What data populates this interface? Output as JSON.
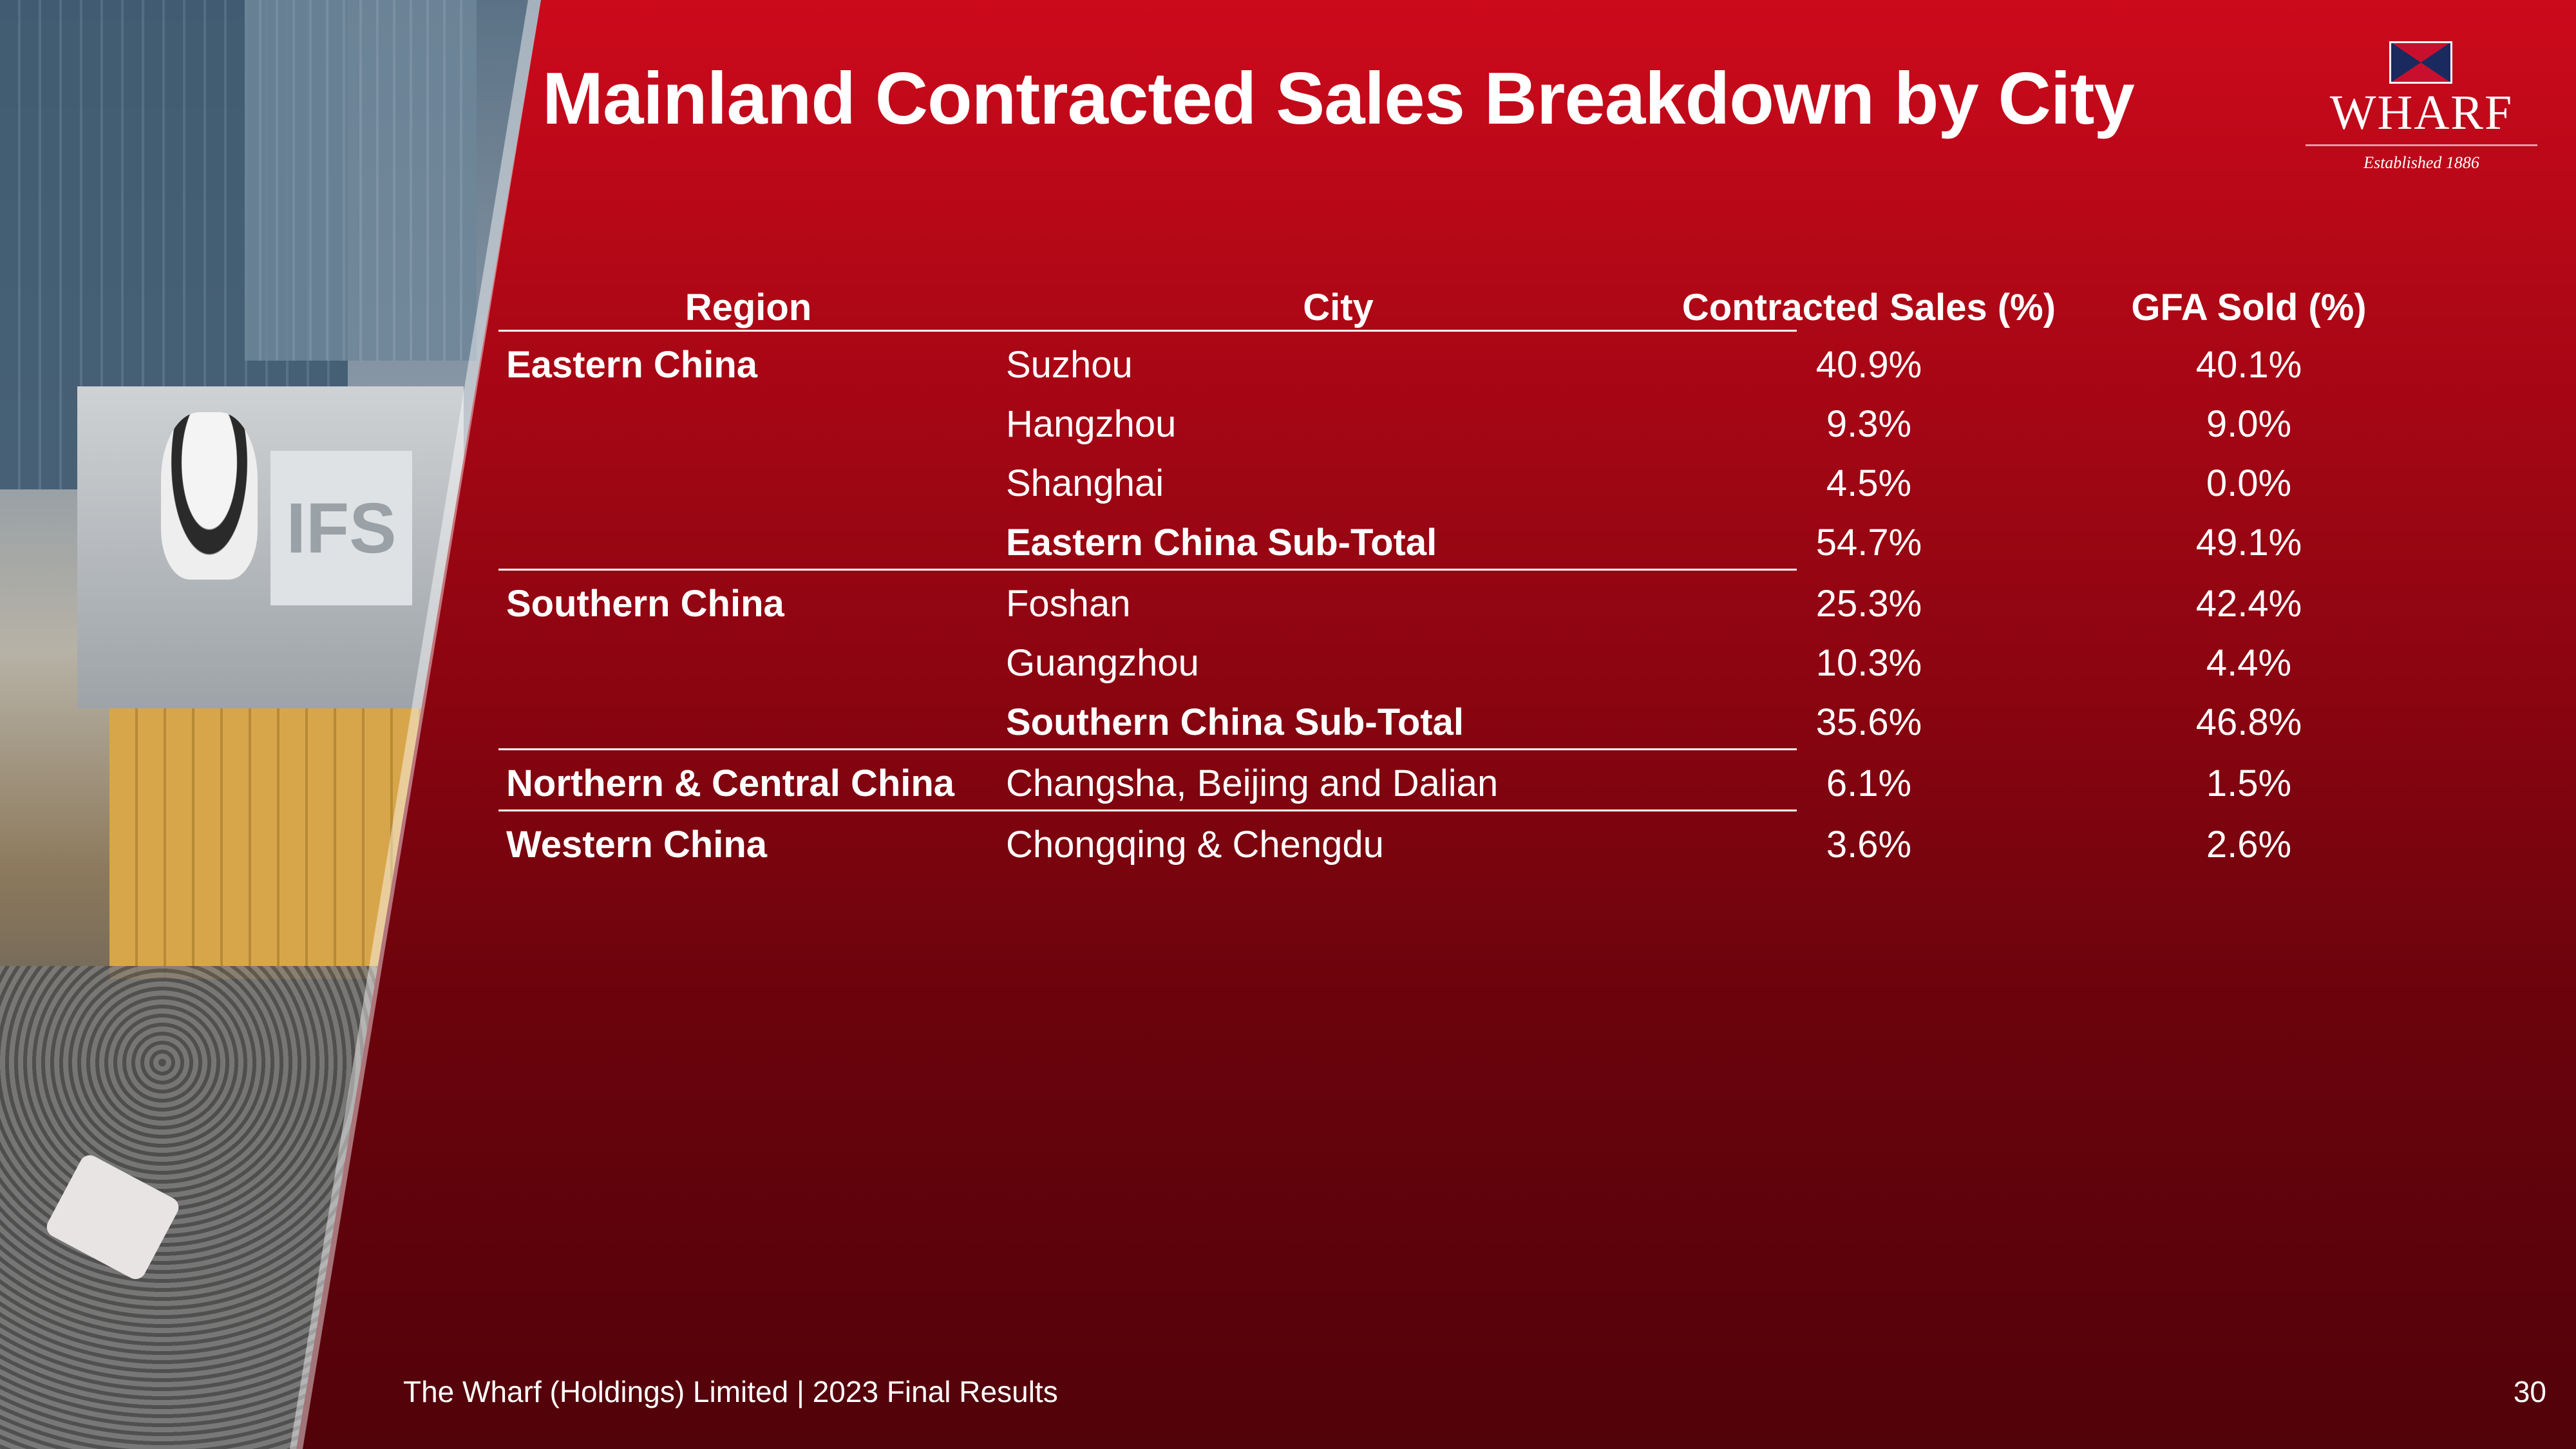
{
  "title": "Mainland Contracted Sales Breakdown by City",
  "logo": {
    "name": "WHARF",
    "established": "Established 1886",
    "colors": {
      "navy": "#1a2a5e",
      "red": "#c8102e"
    }
  },
  "photo": {
    "sign_text": "IFS"
  },
  "table": {
    "headers": {
      "region": "Region",
      "city": "City",
      "contracted_sales": "Contracted Sales (%)",
      "gfa_sold": "GFA Sold (%)"
    },
    "groups": [
      {
        "region": "Eastern China",
        "rows": [
          {
            "city": "Suzhou",
            "contracted_sales": "40.9%",
            "gfa_sold": "40.1%",
            "subtotal": false
          },
          {
            "city": "Hangzhou",
            "contracted_sales": "9.3%",
            "gfa_sold": "9.0%",
            "subtotal": false
          },
          {
            "city": "Shanghai",
            "contracted_sales": "4.5%",
            "gfa_sold": "0.0%",
            "subtotal": false
          },
          {
            "city": "Eastern China Sub-Total",
            "contracted_sales": "54.7%",
            "gfa_sold": "49.1%",
            "subtotal": true
          }
        ]
      },
      {
        "region": "Southern China",
        "rows": [
          {
            "city": "Foshan",
            "contracted_sales": "25.3%",
            "gfa_sold": "42.4%",
            "subtotal": false
          },
          {
            "city": "Guangzhou",
            "contracted_sales": "10.3%",
            "gfa_sold": "4.4%",
            "subtotal": false
          },
          {
            "city": "Southern China Sub-Total",
            "contracted_sales": "35.6%",
            "gfa_sold": "46.8%",
            "subtotal": true
          }
        ]
      },
      {
        "region": "Northern & Central China",
        "rows": [
          {
            "city": "Changsha, Beijing and Dalian",
            "contracted_sales": "6.1%",
            "gfa_sold": "1.5%",
            "subtotal": false
          }
        ]
      },
      {
        "region": "Western China",
        "rows": [
          {
            "city": "Chongqing & Chengdu",
            "contracted_sales": "3.6%",
            "gfa_sold": "2.6%",
            "subtotal": false
          }
        ]
      }
    ]
  },
  "footer": {
    "text": "The Wharf (Holdings) Limited | 2023 Final Results",
    "page_number": "30"
  }
}
